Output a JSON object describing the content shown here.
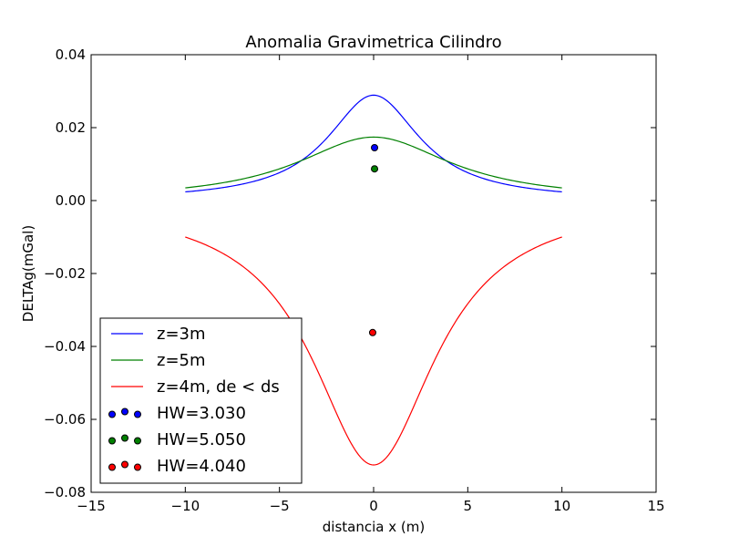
{
  "chart_data": {
    "type": "line",
    "title": "Anomalia Gravimetrica Cilindro",
    "xlabel": "distancia x (m)",
    "ylabel": "DELTAg(mGal)",
    "xlim": [
      -15,
      15
    ],
    "ylim": [
      -0.08,
      0.04
    ],
    "xticks": [
      -15,
      -10,
      -5,
      0,
      5,
      10,
      15
    ],
    "xtick_labels": [
      "−15",
      "−10",
      "−5",
      "0",
      "5",
      "10",
      "15"
    ],
    "yticks": [
      -0.08,
      -0.06,
      -0.04,
      -0.02,
      0.0,
      0.02,
      0.04
    ],
    "ytick_labels": [
      "−0.08",
      "−0.06",
      "−0.04",
      "−0.02",
      "0.00",
      "0.02",
      "0.04"
    ],
    "grid": false,
    "legend_position": "lower-left",
    "x_range": [
      -10,
      10
    ],
    "series": [
      {
        "name": "z=3m",
        "color": "#0000ff",
        "peak": 0.0289,
        "depth": 3
      },
      {
        "name": "z=5m",
        "color": "#008000",
        "peak": 0.0174,
        "depth": 5
      },
      {
        "name": "z=4m, de < ds",
        "color": "#ff0000",
        "peak": -0.0725,
        "depth": 4
      }
    ],
    "points": [
      {
        "name": "HW=3.030",
        "color": "#0000ff",
        "x": 0.05,
        "y": 0.0145
      },
      {
        "name": "HW=5.050",
        "color": "#008000",
        "x": 0.05,
        "y": 0.0087
      },
      {
        "name": "HW=4.040",
        "color": "#ff0000",
        "x": -0.05,
        "y": -0.0362
      }
    ]
  }
}
